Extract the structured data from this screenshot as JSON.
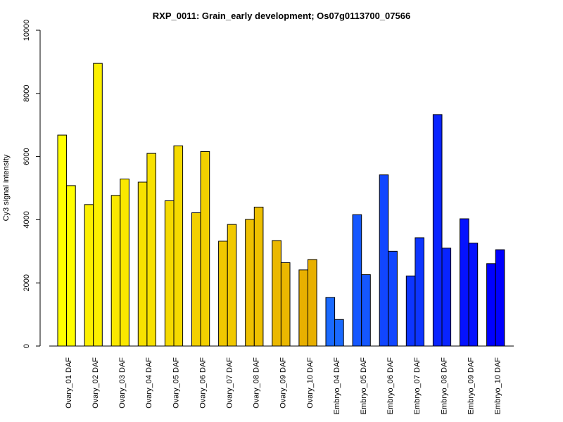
{
  "chart_data": {
    "type": "bar",
    "title": "RXP_0011: Grain_early development; Os07g0113700_07566",
    "xlabel": "",
    "ylabel": "Cy3 signal intensity",
    "ylim": [
      0,
      10000
    ],
    "yticks": [
      0,
      2000,
      4000,
      6000,
      8000,
      10000
    ],
    "grid": false,
    "categories": [
      "Ovary_01 DAF",
      "Ovary_02 DAF",
      "Ovary_03 DAF",
      "Ovary_04 DAF",
      "Ovary_05 DAF",
      "Ovary_06 DAF",
      "Ovary_07 DAF",
      "Ovary_08 DAF",
      "Ovary_09 DAF",
      "Ovary_10 DAF",
      "Embryo_04 DAF",
      "Embryo_05 DAF",
      "Embryo_06 DAF",
      "Embryo_07 DAF",
      "Embryo_08 DAF",
      "Embryo_09 DAF",
      "Embryo_10 DAF"
    ],
    "series": [
      {
        "values": [
          6680,
          4480,
          4770,
          5190,
          4600,
          4220,
          3320,
          4010,
          3340,
          2410,
          1540,
          4160,
          5420,
          2220,
          7330,
          4030,
          2610
        ]
      },
      {
        "values": [
          5080,
          8950,
          5290,
          6100,
          6340,
          6160,
          3850,
          4400,
          2640,
          2740,
          840,
          2260,
          3000,
          3430,
          3100,
          3260,
          3050
        ]
      }
    ],
    "colors": [
      "#ffff00",
      "#fcf000",
      "#fae800",
      "#f7e100",
      "#f5da00",
      "#f2d000",
      "#f0c800",
      "#eec000",
      "#ebb800",
      "#e8b000",
      "#1a6aff",
      "#1557ff",
      "#1146ff",
      "#0d35ff",
      "#0924ff",
      "#0512ff",
      "#0000ff"
    ]
  }
}
